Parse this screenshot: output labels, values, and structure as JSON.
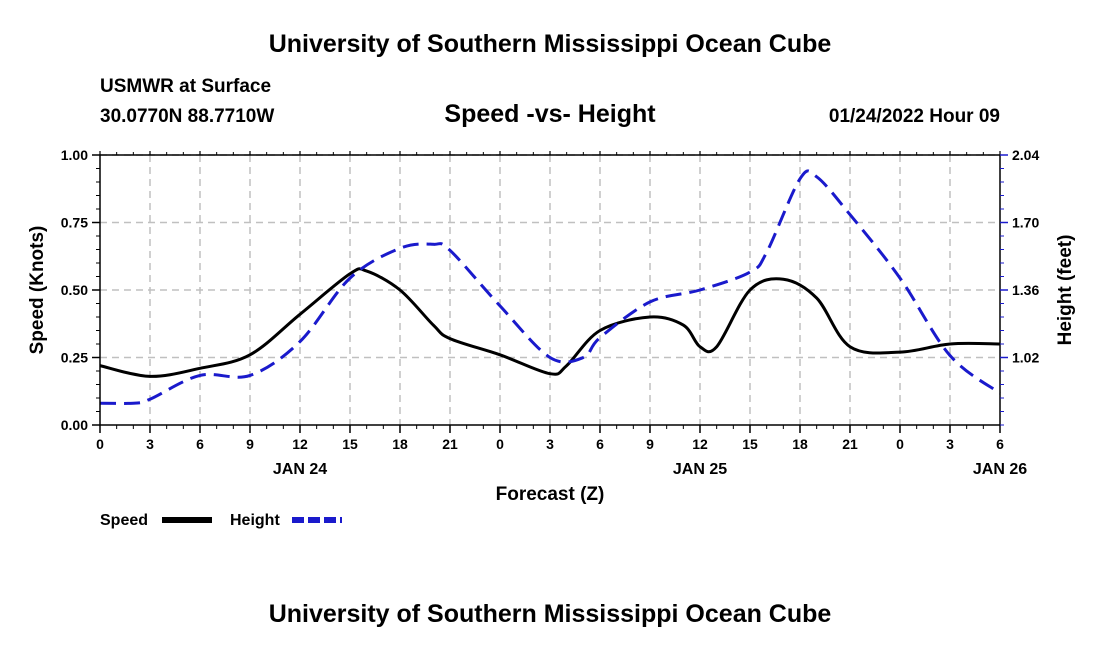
{
  "header": {
    "title": "University of Southern Mississippi Ocean Cube",
    "station": "USMWR at Surface",
    "coords": "30.0770N  88.7710W",
    "subtitle": "Speed -vs- Height",
    "datetime": "01/24/2022 Hour 09"
  },
  "footer": {
    "title": "University of Southern Mississippi Ocean Cube"
  },
  "chart_data": {
    "type": "line",
    "title": "Speed -vs- Height",
    "xlabel": "Forecast (Z)",
    "ylabel": "Speed (Knots)",
    "y2label": "Height (feet)",
    "x_ticks": [
      "0",
      "3",
      "6",
      "9",
      "12",
      "15",
      "18",
      "21",
      "0",
      "3",
      "6",
      "9",
      "12",
      "15",
      "18",
      "21",
      "0",
      "3",
      "6"
    ],
    "date_labels": [
      {
        "label": "JAN 24",
        "hour": 12
      },
      {
        "label": "JAN 25",
        "hour": 36
      },
      {
        "label": "JAN 26",
        "hour": 54
      }
    ],
    "xlim": [
      0,
      54
    ],
    "ylim": [
      0,
      1.0
    ],
    "y_ticks": [
      "0.00",
      "0.25",
      "0.50",
      "0.75",
      "1.00"
    ],
    "y2lim": [
      0.68,
      2.04
    ],
    "y2_ticks": [
      "1.02",
      "1.36",
      "1.70",
      "2.04"
    ],
    "grid": true,
    "legend": [
      {
        "name": "Speed",
        "color": "#000000",
        "style": "solid"
      },
      {
        "name": "Height",
        "color": "#1a1acc",
        "style": "dashed"
      }
    ],
    "series": [
      {
        "name": "Speed",
        "axis": "left",
        "color": "#000000",
        "dash": "solid",
        "hours": [
          0,
          3,
          6,
          9,
          12,
          15,
          16,
          18,
          20,
          21,
          24,
          27,
          28,
          30,
          33,
          35,
          36,
          37,
          39,
          41,
          43,
          45,
          48,
          51,
          54
        ],
        "values": [
          0.22,
          0.18,
          0.21,
          0.26,
          0.41,
          0.56,
          0.57,
          0.5,
          0.37,
          0.32,
          0.26,
          0.19,
          0.22,
          0.35,
          0.4,
          0.37,
          0.29,
          0.29,
          0.5,
          0.54,
          0.47,
          0.29,
          0.27,
          0.3,
          0.3
        ]
      },
      {
        "name": "Height",
        "axis": "right",
        "color": "#1a1acc",
        "dash": "dashed",
        "hours": [
          0,
          2,
          3,
          6,
          9,
          12,
          15,
          18,
          20,
          21,
          24,
          27,
          29,
          30,
          33,
          36,
          39,
          40,
          42,
          43,
          45,
          48,
          51,
          54
        ],
        "values": [
          0.79,
          0.79,
          0.81,
          0.93,
          0.93,
          1.1,
          1.42,
          1.57,
          1.59,
          1.56,
          1.28,
          1.02,
          1.02,
          1.12,
          1.3,
          1.36,
          1.45,
          1.55,
          1.92,
          1.93,
          1.74,
          1.42,
          1.03,
          0.84
        ]
      }
    ]
  }
}
